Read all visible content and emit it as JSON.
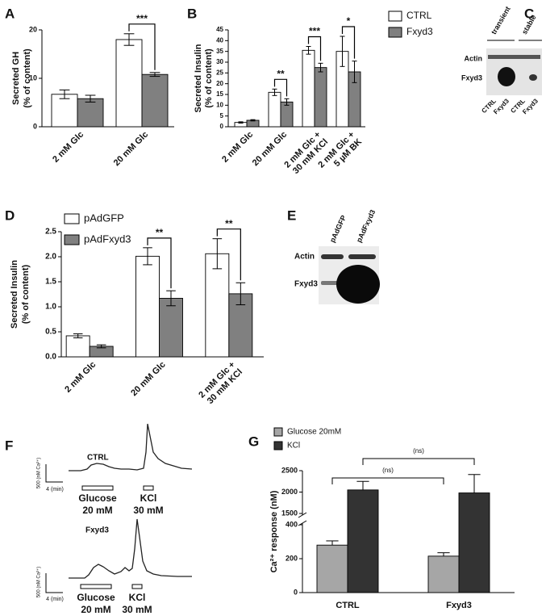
{
  "chart_data": [
    {
      "type": "bar",
      "panel": "A",
      "ylabel": [
        "Secreted GH",
        "(% of content)"
      ],
      "categories": [
        [
          "2 mM Glc"
        ],
        [
          "20 mM Glc"
        ]
      ],
      "series": [
        {
          "color": "#ffffff",
          "values": [
            6.7,
            18.0
          ],
          "errors": [
            0.9,
            1.2
          ]
        },
        {
          "color": "#808080",
          "values": [
            5.8,
            10.8
          ],
          "errors": [
            0.7,
            0.4
          ]
        }
      ],
      "significance": [
        null,
        "***"
      ],
      "ylim": [
        0,
        20
      ],
      "yticks": [
        0,
        10,
        20
      ]
    },
    {
      "type": "bar",
      "panel": "B",
      "ylabel": [
        "Secreted Insulin",
        "(% of content)"
      ],
      "categories": [
        [
          "2 mM Glc"
        ],
        [
          "20 mM Glc"
        ],
        [
          "2 mM Glc +",
          "30 mM KCl"
        ],
        [
          "2 mM Glc +",
          "5 µM BK"
        ]
      ],
      "series": [
        {
          "name": "CTRL",
          "color": "#ffffff",
          "values": [
            2.0,
            16.0,
            35.5,
            35.0
          ],
          "errors": [
            0.3,
            1.5,
            1.8,
            7.0
          ]
        },
        {
          "name": "Fxyd3",
          "color": "#808080",
          "values": [
            3.0,
            11.5,
            27.5,
            25.5
          ],
          "errors": [
            0.3,
            1.5,
            2.0,
            5.0
          ]
        }
      ],
      "significance": [
        null,
        "**",
        "***",
        "*"
      ],
      "ylim": [
        0,
        45
      ],
      "yticks": [
        0,
        5,
        10,
        15,
        20,
        25,
        30,
        35,
        40,
        45
      ],
      "legend": "right"
    },
    {
      "type": "bar",
      "panel": "D",
      "ylabel": [
        "Secreted Insulin",
        "(% of content)"
      ],
      "categories": [
        [
          "2 mM Glc"
        ],
        [
          "20 mM Glc"
        ],
        [
          "2 mM Glc +",
          "30 mM KCl"
        ]
      ],
      "series": [
        {
          "name": "pAdGFP",
          "color": "#ffffff",
          "values": [
            0.42,
            2.01,
            2.06
          ],
          "errors": [
            0.04,
            0.17,
            0.3
          ]
        },
        {
          "name": "pAdFxyd3",
          "color": "#808080",
          "values": [
            0.21,
            1.17,
            1.26
          ],
          "errors": [
            0.03,
            0.15,
            0.22
          ]
        }
      ],
      "significance": [
        null,
        "**",
        "**"
      ],
      "ylim": [
        0,
        2.5
      ],
      "yticks": [
        {
          "value": 0,
          "label": "0.0"
        },
        0.5,
        {
          "value": 1,
          "label": "1.0"
        },
        1.5,
        {
          "value": 2,
          "label": "2.0"
        },
        2.5
      ],
      "legend": "top-left"
    },
    {
      "type": "bar",
      "panel": "G",
      "ylabel": [
        "Ca²⁺ response (nM)"
      ],
      "categories": [
        [
          "CTRL"
        ],
        [
          "Fxyd3"
        ]
      ],
      "series": [
        {
          "name": "Glucose 20mM",
          "color": "#a6a6a6",
          "values": [
            280,
            215
          ],
          "errors": [
            25,
            20
          ]
        },
        {
          "name": "KCl",
          "color": "#333333",
          "values": [
            2050,
            1980
          ],
          "errors": [
            200,
            430
          ]
        }
      ],
      "comparisons": [
        "(ns)",
        "(ns)"
      ],
      "ylim": [
        0,
        2500
      ],
      "axis_break": [
        400,
        1500
      ],
      "yticks": [
        0,
        200,
        400,
        1500,
        2000,
        2500
      ],
      "legend": "top-left"
    }
  ],
  "blots": [
    {
      "panel": "C",
      "groups": [
        "transient",
        "stable"
      ],
      "rows": [
        "Actin",
        "Fxyd3"
      ],
      "lanes": [
        "CTRL",
        "Fxyd3",
        "CTRL",
        "Fxyd3"
      ]
    },
    {
      "panel": "E",
      "lanes": [
        "pAdGFP",
        "pAdFxyd3"
      ],
      "rows": [
        "Actin",
        "Fxyd3"
      ]
    }
  ],
  "traces": {
    "panel": "F",
    "labels": [
      "CTRL",
      "Fxyd3"
    ],
    "scale_y": "500 (nM Ca²⁺)",
    "scale_x": "4 (min)",
    "stimuli": [
      [
        "Glucose",
        "20 mM"
      ],
      [
        "KCl",
        "30 mM"
      ]
    ]
  }
}
